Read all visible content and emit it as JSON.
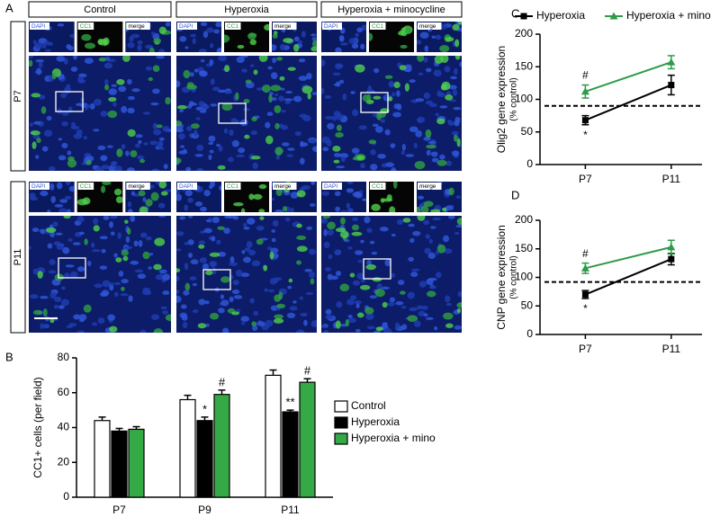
{
  "panel_labels": {
    "a": "A",
    "b": "B",
    "c": "C",
    "d": "D"
  },
  "microscopy": {
    "columns": [
      "Control",
      "Hyperoxia",
      "Hyperoxia + minocycline"
    ],
    "rows": [
      "P7",
      "P11"
    ],
    "inset_labels": [
      "DAPI",
      "CC1",
      "merge"
    ]
  },
  "chart_data": [
    {
      "type": "bar",
      "ylabel": "CC1+ cells (per field)",
      "categories": [
        "P7",
        "P9",
        "P11"
      ],
      "series": [
        {
          "name": "Control",
          "color": "#ffffff",
          "values": [
            44,
            56,
            70
          ],
          "errors": [
            2,
            2.5,
            3
          ],
          "labels": [
            null,
            null,
            null
          ]
        },
        {
          "name": "Hyperoxia",
          "color": "#000000",
          "values": [
            38,
            44,
            49
          ],
          "errors": [
            1.5,
            2,
            1
          ],
          "labels": [
            null,
            "*",
            "**"
          ]
        },
        {
          "name": "Hyperoxia + mino",
          "color": "#35a945",
          "values": [
            39,
            59,
            66
          ],
          "errors": [
            1.5,
            2.5,
            2
          ],
          "labels": [
            null,
            "#",
            "#"
          ]
        }
      ],
      "ylim": [
        0,
        80
      ],
      "yticks": [
        0,
        20,
        40,
        60,
        80
      ],
      "legend": "right"
    },
    {
      "type": "line",
      "ylabel": "Olig2 gene expression",
      "ylabel2": "(% control)",
      "categories": [
        "P7",
        "P11"
      ],
      "series": [
        {
          "name": "Hyperoxia",
          "color": "#000000",
          "values": [
            68,
            122
          ],
          "errors": [
            7,
            15
          ],
          "labels": [
            "*",
            null
          ]
        },
        {
          "name": "Hyperoxia + mino",
          "color": "#2e9a4a",
          "values": [
            112,
            157
          ],
          "errors": [
            10,
            10
          ],
          "labels": [
            "#",
            null
          ]
        }
      ],
      "ylim": [
        0,
        200
      ],
      "yticks": [
        0,
        50,
        100,
        150,
        200
      ],
      "hline": 90,
      "legend": "top"
    },
    {
      "type": "line",
      "ylabel": "CNP gene expression",
      "ylabel2": "(% control)",
      "categories": [
        "P7",
        "P11"
      ],
      "series": [
        {
          "color": "#000000",
          "values": [
            70,
            132
          ],
          "errors": [
            7,
            10
          ],
          "labels": [
            "*",
            null
          ]
        },
        {
          "color": "#2e9a4a",
          "values": [
            116,
            153
          ],
          "errors": [
            9,
            12
          ],
          "labels": [
            "#",
            null
          ]
        }
      ],
      "ylim": [
        0,
        200
      ],
      "yticks": [
        0,
        50,
        100,
        150,
        200
      ],
      "hline": 92
    }
  ]
}
